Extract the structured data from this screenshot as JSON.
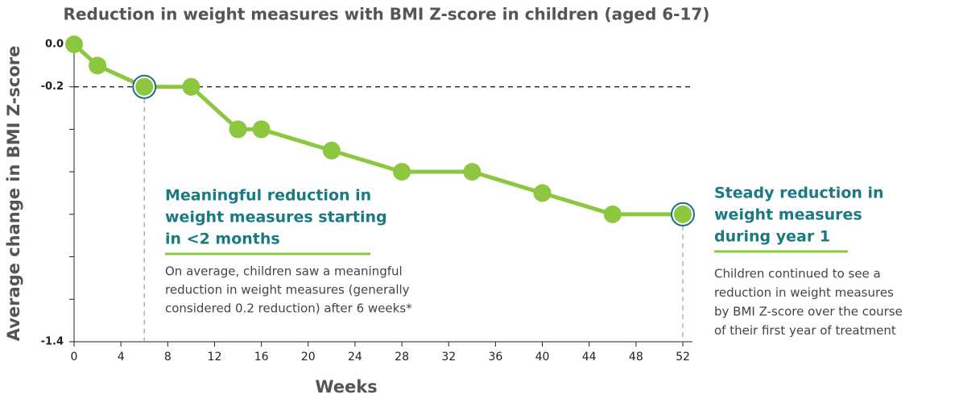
{
  "chart_data": {
    "type": "line",
    "title": "Reduction in weight measures with BMI Z-score in children (aged 6-17)",
    "x_label": "Weeks",
    "y_label": "Average change in BMI Z-score",
    "x": [
      0,
      2,
      6,
      10,
      14,
      16,
      22,
      28,
      34,
      40,
      46,
      52
    ],
    "series": [
      {
        "color": "#8dc63f",
        "values": [
          0,
          -0.1,
          -0.2,
          -0.2,
          -0.4,
          -0.4,
          -0.5,
          -0.6,
          -0.6,
          -0.7,
          -0.8,
          -0.8
        ]
      }
    ],
    "highlight_indices": [
      2,
      11
    ],
    "highlight_color": "#1a6f80",
    "reference_y": -0.2,
    "xlim": [
      0,
      52
    ],
    "xticks": [
      0,
      4,
      8,
      12,
      16,
      20,
      24,
      28,
      32,
      36,
      40,
      44,
      48,
      52
    ],
    "ylim": [
      -1.4,
      0
    ],
    "yticks": [
      {
        "value": 0,
        "label": "0.0"
      },
      {
        "value": -0.2,
        "label": "-0.2"
      },
      {
        "value": -0.4,
        "label": null
      },
      {
        "value": -0.6,
        "label": null
      },
      {
        "value": -0.8,
        "label": null
      },
      {
        "value": -1.0,
        "label": null
      },
      {
        "value": -1.2,
        "label": null
      },
      {
        "value": -1.4,
        "label": "-1.4"
      }
    ],
    "annotations": [
      {
        "title_lines": [
          "Meaningful reduction in",
          "weight measures starting",
          "in <2 months"
        ],
        "body_lines": [
          "On average, children saw a meaningful",
          "reduction in weight measures (generally",
          "considered 0.2 reduction) after 6 weeks*"
        ]
      },
      {
        "title_lines": [
          "Steady reduction in",
          "weight measures",
          "during year 1"
        ],
        "body_lines": [
          "Children continued to see a",
          "reduction in weight measures",
          "by BMI Z-score over the course",
          "of their first year of treatment"
        ]
      }
    ]
  }
}
